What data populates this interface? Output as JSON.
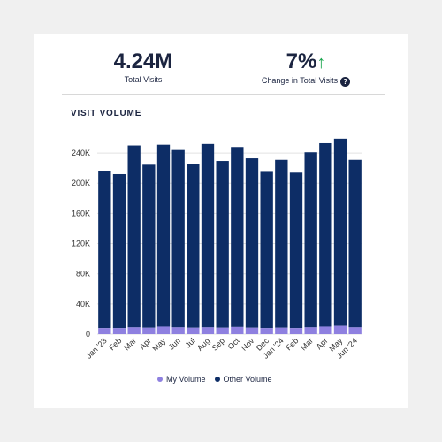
{
  "kpis": {
    "total_visits_value": "4.24M",
    "total_visits_label": "Total Visits",
    "change_value": "7%",
    "change_arrow": "↑",
    "change_label": "Change in Total Visits",
    "help_icon": "?"
  },
  "colors": {
    "my_volume": "#8e80e0",
    "other_volume": "#0d2d66",
    "positive": "#1aa64e"
  },
  "chart_data": {
    "type": "bar",
    "stacked": true,
    "title": "VISIT VOLUME",
    "categories": [
      "Jan '23",
      "Feb",
      "Mar",
      "Apr",
      "May",
      "Jun",
      "Jul",
      "Aug",
      "Sep",
      "Oct",
      "Nov",
      "Dec",
      "Jan '24",
      "Feb",
      "Mar",
      "Apr",
      "May",
      "Jun '24"
    ],
    "series": [
      {
        "name": "My Volume",
        "values": [
          8000,
          8000,
          9000,
          8500,
          10000,
          9000,
          8500,
          9000,
          8500,
          9500,
          8500,
          8000,
          8500,
          8000,
          9000,
          10000,
          11000,
          9000
        ]
      },
      {
        "name": "Other Volume",
        "values": [
          208000,
          204000,
          241000,
          216000,
          241000,
          235000,
          217000,
          243000,
          221000,
          238500,
          224500,
          207000,
          222500,
          206000,
          232000,
          243000,
          248000,
          222000
        ]
      }
    ],
    "ylim": [
      0,
      260000
    ],
    "yticks": [
      0,
      40000,
      80000,
      120000,
      160000,
      200000,
      240000
    ],
    "ytick_labels": [
      "0",
      "40K",
      "80K",
      "120K",
      "160K",
      "200K",
      "240K"
    ],
    "grid": true,
    "legend_position": "bottom"
  }
}
